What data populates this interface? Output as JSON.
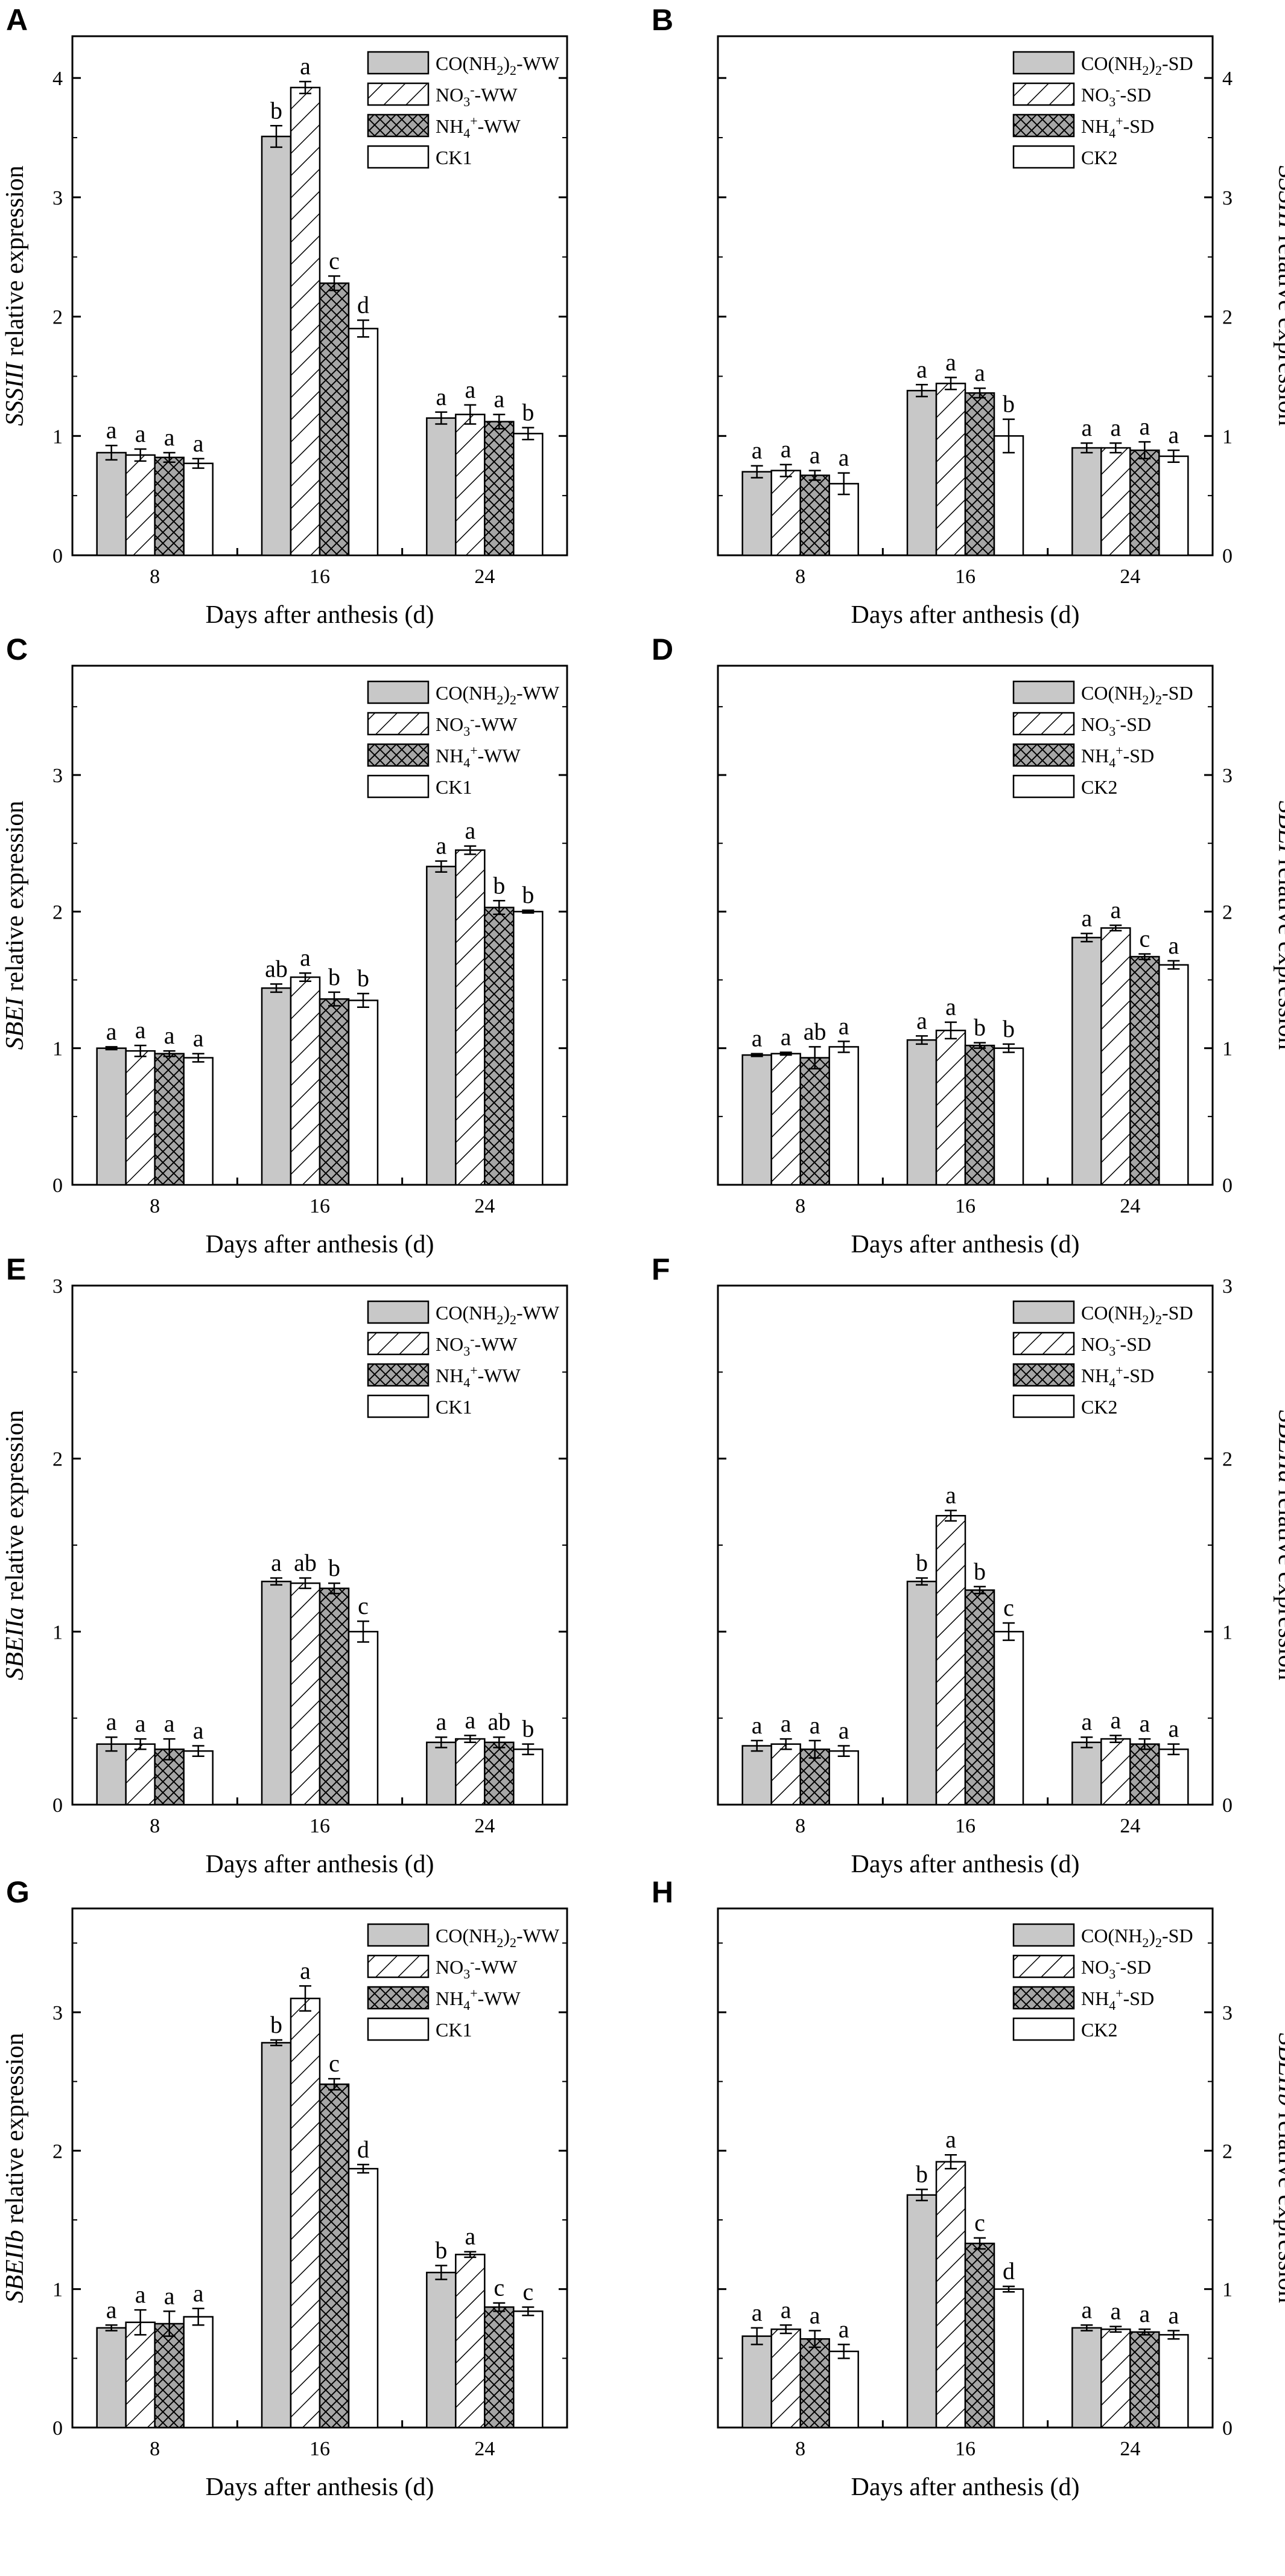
{
  "colors": {
    "urea": "#c8c8c8",
    "nitrate": "#ffffff",
    "ammonium": "#a6a6a6",
    "control": "#ffffff",
    "stroke": "#000000"
  },
  "chart_data": [
    {
      "panel": "A",
      "type": "bar",
      "side": "left",
      "gene": "SSSIII",
      "ylabel_suffix": " relative expression",
      "xlabel": "Days after anthesis (d)",
      "categories": [
        "8",
        "16",
        "24"
      ],
      "ylim": [
        0,
        4.35
      ],
      "yticks": [
        0,
        1,
        2,
        3,
        4
      ],
      "legend": [
        {
          "name": "CO(NH",
          "sub1": "2",
          "mid": ")",
          "sub2": "2",
          "tail": "-WW",
          "pattern": "urea"
        },
        {
          "name": "NO",
          "sub1": "3",
          "sup": "-",
          "tail": "-WW",
          "pattern": "nitrate"
        },
        {
          "name": "NH",
          "sub1": "4",
          "sup": "+",
          "tail": "-WW",
          "pattern": "ammonium"
        },
        {
          "name": "CK1",
          "pattern": "control"
        }
      ],
      "series": [
        {
          "name": "CO(NH2)2-WW",
          "pattern": "urea",
          "values": [
            0.86,
            3.51,
            1.15
          ],
          "errors": [
            0.06,
            0.09,
            0.05
          ],
          "letters": [
            "a",
            "b",
            "a"
          ]
        },
        {
          "name": "NO3--WW",
          "pattern": "nitrate",
          "values": [
            0.84,
            3.92,
            1.18
          ],
          "errors": [
            0.05,
            0.05,
            0.08
          ],
          "letters": [
            "a",
            "a",
            "a"
          ]
        },
        {
          "name": "NH4+-WW",
          "pattern": "ammonium",
          "values": [
            0.82,
            2.28,
            1.12
          ],
          "errors": [
            0.04,
            0.06,
            0.06
          ],
          "letters": [
            "a",
            "c",
            "a"
          ]
        },
        {
          "name": "CK1",
          "pattern": "control",
          "values": [
            0.77,
            1.9,
            1.02
          ],
          "errors": [
            0.04,
            0.07,
            0.05
          ],
          "letters": [
            "a",
            "d",
            "b"
          ]
        }
      ]
    },
    {
      "panel": "B",
      "type": "bar",
      "side": "right",
      "gene": "SSSIII",
      "ylabel_suffix": " relative expression",
      "xlabel": "Days after anthesis (d)",
      "categories": [
        "8",
        "16",
        "24"
      ],
      "ylim": [
        0,
        4.35
      ],
      "yticks": [
        0,
        1,
        2,
        3,
        4
      ],
      "legend": [
        {
          "name": "CO(NH",
          "sub1": "2",
          "mid": ")",
          "sub2": "2",
          "tail": "-SD",
          "pattern": "urea"
        },
        {
          "name": "NO",
          "sub1": "3",
          "sup": "-",
          "tail": "-SD",
          "pattern": "nitrate"
        },
        {
          "name": "NH",
          "sub1": "4",
          "sup": "+",
          "tail": "-SD",
          "pattern": "ammonium"
        },
        {
          "name": "CK2",
          "pattern": "control"
        }
      ],
      "series": [
        {
          "name": "CO(NH2)2-SD",
          "pattern": "urea",
          "values": [
            0.7,
            1.38,
            0.9
          ],
          "errors": [
            0.05,
            0.05,
            0.04
          ],
          "letters": [
            "a",
            "a",
            "a"
          ]
        },
        {
          "name": "NO3--SD",
          "pattern": "nitrate",
          "values": [
            0.71,
            1.44,
            0.9
          ],
          "errors": [
            0.05,
            0.05,
            0.04
          ],
          "letters": [
            "a",
            "a",
            "a"
          ]
        },
        {
          "name": "NH4+-SD",
          "pattern": "ammonium",
          "values": [
            0.67,
            1.36,
            0.88
          ],
          "errors": [
            0.04,
            0.04,
            0.07
          ],
          "letters": [
            "a",
            "a",
            "a"
          ]
        },
        {
          "name": "CK2",
          "pattern": "control",
          "values": [
            0.6,
            1.0,
            0.83
          ],
          "errors": [
            0.09,
            0.14,
            0.05
          ],
          "letters": [
            "a",
            "b",
            "a"
          ]
        }
      ]
    },
    {
      "panel": "C",
      "type": "bar",
      "side": "left",
      "gene": "SBEI",
      "ylabel_suffix": " relative expression",
      "xlabel": "Days after anthesis (d)",
      "categories": [
        "8",
        "16",
        "24"
      ],
      "ylim": [
        0,
        3.8
      ],
      "yticks": [
        0,
        1,
        2,
        3
      ],
      "legend": [
        {
          "name": "CO(NH",
          "sub1": "2",
          "mid": ")",
          "sub2": "2",
          "tail": "-WW",
          "pattern": "urea"
        },
        {
          "name": "NO",
          "sub1": "3",
          "sup": "-",
          "tail": "-WW",
          "pattern": "nitrate"
        },
        {
          "name": "NH",
          "sub1": "4",
          "sup": "+",
          "tail": "-WW",
          "pattern": "ammonium"
        },
        {
          "name": "CK1",
          "pattern": "control"
        }
      ],
      "series": [
        {
          "name": "CO(NH2)2-WW",
          "pattern": "urea",
          "values": [
            1.0,
            1.44,
            2.33
          ],
          "errors": [
            0.01,
            0.03,
            0.04
          ],
          "letters": [
            "a",
            "ab",
            "a"
          ]
        },
        {
          "name": "NO3--WW",
          "pattern": "nitrate",
          "values": [
            0.98,
            1.52,
            2.45
          ],
          "errors": [
            0.04,
            0.03,
            0.03
          ],
          "letters": [
            "a",
            "a",
            "a"
          ]
        },
        {
          "name": "NH4+-WW",
          "pattern": "ammonium",
          "values": [
            0.96,
            1.36,
            2.03
          ],
          "errors": [
            0.02,
            0.05,
            0.05
          ],
          "letters": [
            "a",
            "b",
            "b"
          ]
        },
        {
          "name": "CK1",
          "pattern": "control",
          "values": [
            0.93,
            1.35,
            2.0
          ],
          "errors": [
            0.03,
            0.05,
            0.01
          ],
          "letters": [
            "a",
            "b",
            "b"
          ]
        }
      ]
    },
    {
      "panel": "D",
      "type": "bar",
      "side": "right",
      "gene": "SBEI",
      "ylabel_suffix": " relative expression",
      "xlabel": "Days after anthesis (d)",
      "categories": [
        "8",
        "16",
        "24"
      ],
      "ylim": [
        0,
        3.8
      ],
      "yticks": [
        0,
        1,
        2,
        3
      ],
      "legend": [
        {
          "name": "CO(NH",
          "sub1": "2",
          "mid": ")",
          "sub2": "2",
          "tail": "-SD",
          "pattern": "urea"
        },
        {
          "name": "NO",
          "sub1": "3",
          "sup": "-",
          "tail": "-SD",
          "pattern": "nitrate"
        },
        {
          "name": "NH",
          "sub1": "4",
          "sup": "+",
          "tail": "-SD",
          "pattern": "ammonium"
        },
        {
          "name": "CK2",
          "pattern": "control"
        }
      ],
      "series": [
        {
          "name": "CO(NH2)2-SD",
          "pattern": "urea",
          "values": [
            0.95,
            1.06,
            1.81
          ],
          "errors": [
            0.01,
            0.03,
            0.03
          ],
          "letters": [
            "a",
            "a",
            "a"
          ]
        },
        {
          "name": "NO3--SD",
          "pattern": "nitrate",
          "values": [
            0.96,
            1.13,
            1.88
          ],
          "errors": [
            0.01,
            0.06,
            0.02
          ],
          "letters": [
            "a",
            "a",
            "a"
          ]
        },
        {
          "name": "NH4+-SD",
          "pattern": "ammonium",
          "values": [
            0.93,
            1.02,
            1.67
          ],
          "errors": [
            0.08,
            0.02,
            0.02
          ],
          "letters": [
            "ab",
            "b",
            "c"
          ]
        },
        {
          "name": "CK2",
          "pattern": "control",
          "values": [
            1.01,
            1.0,
            1.61
          ],
          "errors": [
            0.04,
            0.03,
            0.03
          ],
          "letters": [
            "a",
            "b",
            "a"
          ]
        }
      ]
    },
    {
      "panel": "E",
      "type": "bar",
      "side": "left",
      "gene": "SBEIIa",
      "ylabel_suffix": " relative expression",
      "xlabel": "Days after anthesis (d)",
      "categories": [
        "8",
        "16",
        "24"
      ],
      "ylim": [
        0,
        3.0
      ],
      "yticks": [
        0,
        1,
        2,
        3
      ],
      "legend": [
        {
          "name": "CO(NH",
          "sub1": "2",
          "mid": ")",
          "sub2": "2",
          "tail": "-WW",
          "pattern": "urea"
        },
        {
          "name": "NO",
          "sub1": "3",
          "sup": "-",
          "tail": "-WW",
          "pattern": "nitrate"
        },
        {
          "name": "NH",
          "sub1": "4",
          "sup": "+",
          "tail": "-WW",
          "pattern": "ammonium"
        },
        {
          "name": "CK1",
          "pattern": "control"
        }
      ],
      "series": [
        {
          "name": "CO(NH2)2-WW",
          "pattern": "urea",
          "values": [
            0.35,
            1.29,
            0.36
          ],
          "errors": [
            0.04,
            0.02,
            0.03
          ],
          "letters": [
            "a",
            "a",
            "a"
          ]
        },
        {
          "name": "NO3--WW",
          "pattern": "nitrate",
          "values": [
            0.35,
            1.28,
            0.38
          ],
          "errors": [
            0.03,
            0.03,
            0.02
          ],
          "letters": [
            "a",
            "ab",
            "a"
          ]
        },
        {
          "name": "NH4+-WW",
          "pattern": "ammonium",
          "values": [
            0.32,
            1.25,
            0.36
          ],
          "errors": [
            0.06,
            0.03,
            0.03
          ],
          "letters": [
            "a",
            "b",
            "ab"
          ]
        },
        {
          "name": "CK1",
          "pattern": "control",
          "values": [
            0.31,
            1.0,
            0.32
          ],
          "errors": [
            0.03,
            0.06,
            0.03
          ],
          "letters": [
            "a",
            "c",
            "b"
          ]
        }
      ]
    },
    {
      "panel": "F",
      "type": "bar",
      "side": "right",
      "gene": "SBEIIa",
      "ylabel_suffix": " relative expression",
      "xlabel": "Days after anthesis (d)",
      "categories": [
        "8",
        "16",
        "24"
      ],
      "ylim": [
        0,
        3.0
      ],
      "yticks": [
        0,
        1,
        2,
        3
      ],
      "legend": [
        {
          "name": "CO(NH",
          "sub1": "2",
          "mid": ")",
          "sub2": "2",
          "tail": "-SD",
          "pattern": "urea"
        },
        {
          "name": "NO",
          "sub1": "3",
          "sup": "-",
          "tail": "-SD",
          "pattern": "nitrate"
        },
        {
          "name": "NH",
          "sub1": "4",
          "sup": "+",
          "tail": "-SD",
          "pattern": "ammonium"
        },
        {
          "name": "CK2",
          "pattern": "control"
        }
      ],
      "series": [
        {
          "name": "CO(NH2)2-SD",
          "pattern": "urea",
          "values": [
            0.34,
            1.29,
            0.36
          ],
          "errors": [
            0.03,
            0.02,
            0.03
          ],
          "letters": [
            "a",
            "b",
            "a"
          ]
        },
        {
          "name": "NO3--SD",
          "pattern": "nitrate",
          "values": [
            0.35,
            1.67,
            0.38
          ],
          "errors": [
            0.03,
            0.03,
            0.02
          ],
          "letters": [
            "a",
            "a",
            "a"
          ]
        },
        {
          "name": "NH4+-SD",
          "pattern": "ammonium",
          "values": [
            0.32,
            1.24,
            0.35
          ],
          "errors": [
            0.05,
            0.02,
            0.03
          ],
          "letters": [
            "a",
            "b",
            "a"
          ]
        },
        {
          "name": "CK2",
          "pattern": "control",
          "values": [
            0.31,
            1.0,
            0.32
          ],
          "errors": [
            0.03,
            0.05,
            0.03
          ],
          "letters": [
            "a",
            "c",
            "a"
          ]
        }
      ]
    },
    {
      "panel": "G",
      "type": "bar",
      "side": "left",
      "gene": "SBEIIb",
      "ylabel_suffix": " relative expression",
      "xlabel": "Days after anthesis (d)",
      "categories": [
        "8",
        "16",
        "24"
      ],
      "ylim": [
        0,
        3.75
      ],
      "yticks": [
        0,
        1,
        2,
        3
      ],
      "legend": [
        {
          "name": "CO(NH",
          "sub1": "2",
          "mid": ")",
          "sub2": "2",
          "tail": "-WW",
          "pattern": "urea"
        },
        {
          "name": "NO",
          "sub1": "3",
          "sup": "-",
          "tail": "-WW",
          "pattern": "nitrate"
        },
        {
          "name": "NH",
          "sub1": "4",
          "sup": "+",
          "tail": "-WW",
          "pattern": "ammonium"
        },
        {
          "name": "CK1",
          "pattern": "control"
        }
      ],
      "series": [
        {
          "name": "CO(NH2)2-WW",
          "pattern": "urea",
          "values": [
            0.72,
            2.78,
            1.12
          ],
          "errors": [
            0.02,
            0.02,
            0.05
          ],
          "letters": [
            "a",
            "b",
            "b"
          ]
        },
        {
          "name": "NO3--WW",
          "pattern": "nitrate",
          "values": [
            0.76,
            3.1,
            1.25
          ],
          "errors": [
            0.09,
            0.09,
            0.02
          ],
          "letters": [
            "a",
            "a",
            "a"
          ]
        },
        {
          "name": "NH4+-WW",
          "pattern": "ammonium",
          "values": [
            0.75,
            2.48,
            0.87
          ],
          "errors": [
            0.09,
            0.04,
            0.03
          ],
          "letters": [
            "a",
            "c",
            "c"
          ]
        },
        {
          "name": "CK1",
          "pattern": "control",
          "values": [
            0.8,
            1.87,
            0.84
          ],
          "errors": [
            0.06,
            0.03,
            0.03
          ],
          "letters": [
            "a",
            "d",
            "c"
          ]
        }
      ]
    },
    {
      "panel": "H",
      "type": "bar",
      "side": "right",
      "gene": "SBEIIb",
      "ylabel_suffix": " relative expression",
      "xlabel": "Days after anthesis (d)",
      "categories": [
        "8",
        "16",
        "24"
      ],
      "ylim": [
        0,
        3.75
      ],
      "yticks": [
        0,
        1,
        2,
        3
      ],
      "legend": [
        {
          "name": "CO(NH",
          "sub1": "2",
          "mid": ")",
          "sub2": "2",
          "tail": "-SD",
          "pattern": "urea"
        },
        {
          "name": "NO",
          "sub1": "3",
          "sup": "-",
          "tail": "-SD",
          "pattern": "nitrate"
        },
        {
          "name": "NH",
          "sub1": "4",
          "sup": "+",
          "tail": "-SD",
          "pattern": "ammonium"
        },
        {
          "name": "CK2",
          "pattern": "control"
        }
      ],
      "series": [
        {
          "name": "CO(NH2)2-SD",
          "pattern": "urea",
          "values": [
            0.66,
            1.68,
            0.72
          ],
          "errors": [
            0.06,
            0.04,
            0.02
          ],
          "letters": [
            "a",
            "b",
            "a"
          ]
        },
        {
          "name": "NO3--SD",
          "pattern": "nitrate",
          "values": [
            0.71,
            1.92,
            0.71
          ],
          "errors": [
            0.03,
            0.05,
            0.02
          ],
          "letters": [
            "a",
            "a",
            "a"
          ]
        },
        {
          "name": "NH4+-SD",
          "pattern": "ammonium",
          "values": [
            0.64,
            1.33,
            0.69
          ],
          "errors": [
            0.06,
            0.04,
            0.02
          ],
          "letters": [
            "a",
            "c",
            "a"
          ]
        },
        {
          "name": "CK2",
          "pattern": "control",
          "values": [
            0.55,
            1.0,
            0.67
          ],
          "errors": [
            0.05,
            0.02,
            0.03
          ],
          "letters": [
            "a",
            "d",
            "a"
          ]
        }
      ]
    }
  ]
}
